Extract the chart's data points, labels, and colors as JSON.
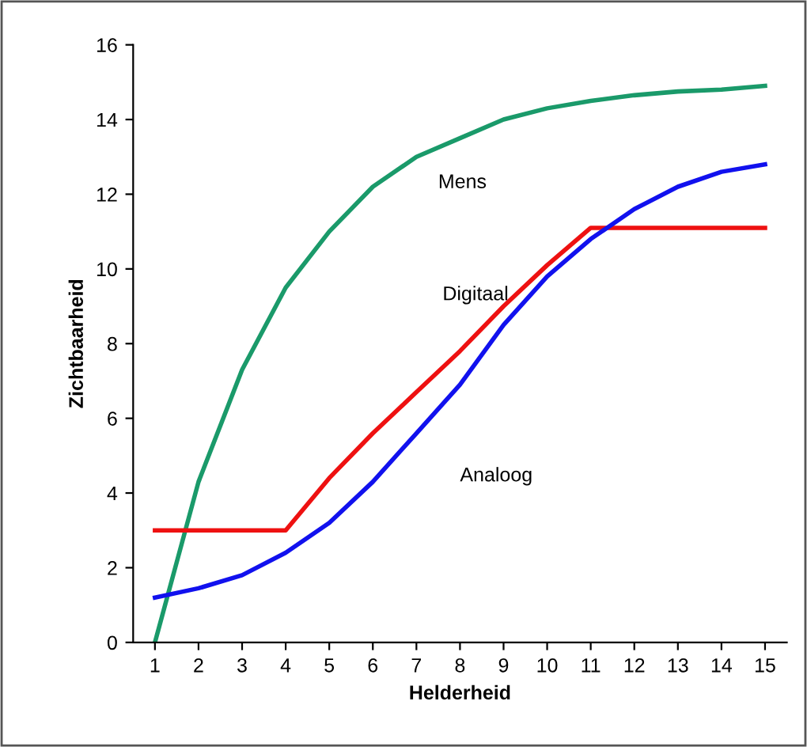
{
  "chart_data": {
    "type": "line",
    "xlabel": "Helderheid",
    "ylabel": "Zichtbaarheid",
    "x": [
      1,
      2,
      3,
      4,
      5,
      6,
      7,
      8,
      9,
      10,
      11,
      12,
      13,
      14,
      15
    ],
    "series": [
      {
        "name": "Mens",
        "color": "#1a9a6a",
        "values": [
          0,
          4.3,
          7.3,
          9.5,
          11.0,
          12.2,
          13.0,
          13.5,
          14.0,
          14.3,
          14.5,
          14.65,
          14.75,
          14.8,
          14.9
        ]
      },
      {
        "name": "Digitaal",
        "color": "#ee1111",
        "values": [
          3,
          3,
          3,
          3,
          4.4,
          5.6,
          6.7,
          7.8,
          9.0,
          10.1,
          11.1,
          11.1,
          11.1,
          11.1,
          11.1
        ]
      },
      {
        "name": "Analoog",
        "color": "#1111ee",
        "values": [
          1.2,
          1.45,
          1.8,
          2.4,
          3.2,
          4.3,
          5.6,
          6.9,
          8.5,
          9.8,
          10.8,
          11.6,
          12.2,
          12.6,
          12.8
        ]
      }
    ],
    "xlim": [
      0.5,
      15.5
    ],
    "xticks": [
      1,
      2,
      3,
      4,
      5,
      6,
      7,
      8,
      9,
      10,
      11,
      12,
      13,
      14,
      15
    ],
    "ylim": [
      0,
      16
    ],
    "yticks": [
      0,
      2,
      4,
      6,
      8,
      10,
      12,
      14,
      16
    ],
    "grid": false,
    "legend": false,
    "marker": "none",
    "line_style": "solid"
  }
}
